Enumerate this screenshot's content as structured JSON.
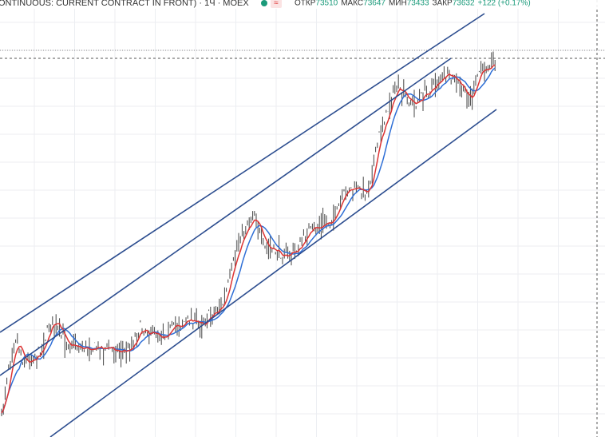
{
  "header": {
    "symbol": "ONTINUOUS: CURRENT CONTRACT IN FRONT) · 1Ч · MOEX",
    "ohlc": [
      {
        "label": "ОТКР",
        "value": 73510
      },
      {
        "label": "МАКС",
        "value": 73647
      },
      {
        "label": "МИН",
        "value": 73433
      },
      {
        "label": "ЗАКР",
        "value": 73632
      }
    ],
    "change": "+122 (+0.17%)"
  }
}
